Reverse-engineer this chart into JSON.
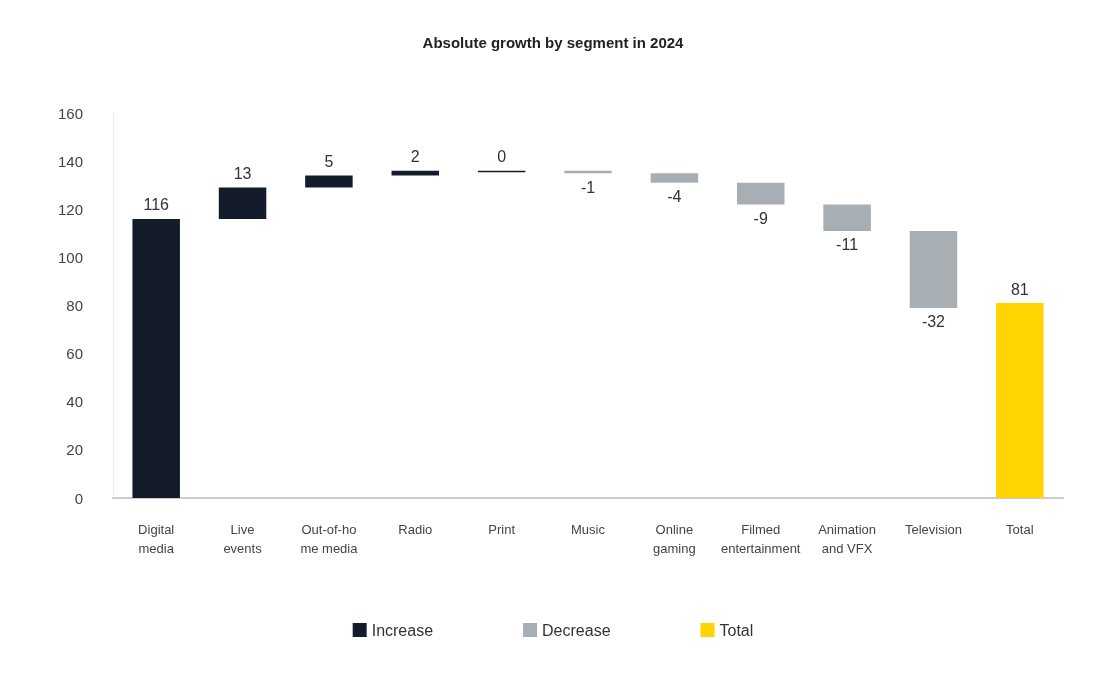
{
  "chart_data": {
    "type": "bar",
    "title": "Absolute growth by segment in 2024",
    "categories": [
      "Digital\nmedia",
      "Live\nevents",
      "Out-of-ho\nme media",
      "Radio",
      "Print",
      "Music",
      "Online\ngaming",
      "Filmed\nentertainment",
      "Animation\nand VFX",
      "Television",
      "Total"
    ],
    "series": [
      {
        "name": "Increase",
        "color": "#141c2c",
        "values": [
          116,
          13,
          5,
          2,
          0,
          null,
          null,
          null,
          null,
          null,
          null
        ],
        "base": [
          0,
          116,
          129,
          134,
          136,
          null,
          null,
          null,
          null,
          null,
          null
        ]
      },
      {
        "name": "Decrease",
        "color": "#a8afb4",
        "values": [
          null,
          null,
          null,
          null,
          null,
          -1,
          -4,
          -9,
          -11,
          -32,
          null
        ],
        "base": [
          null,
          null,
          null,
          null,
          null,
          136,
          135,
          131,
          122,
          111,
          null
        ]
      },
      {
        "name": "Total",
        "color": "#ffd400",
        "values": [
          null,
          null,
          null,
          null,
          null,
          null,
          null,
          null,
          null,
          null,
          81
        ],
        "base": [
          null,
          null,
          null,
          null,
          null,
          null,
          null,
          null,
          null,
          null,
          0
        ]
      }
    ],
    "ylim": [
      0,
      160
    ],
    "yticks": [
      0,
      20,
      40,
      60,
      80,
      100,
      120,
      140,
      160
    ],
    "data_labels": true,
    "grid": false,
    "legend": "bottom"
  }
}
